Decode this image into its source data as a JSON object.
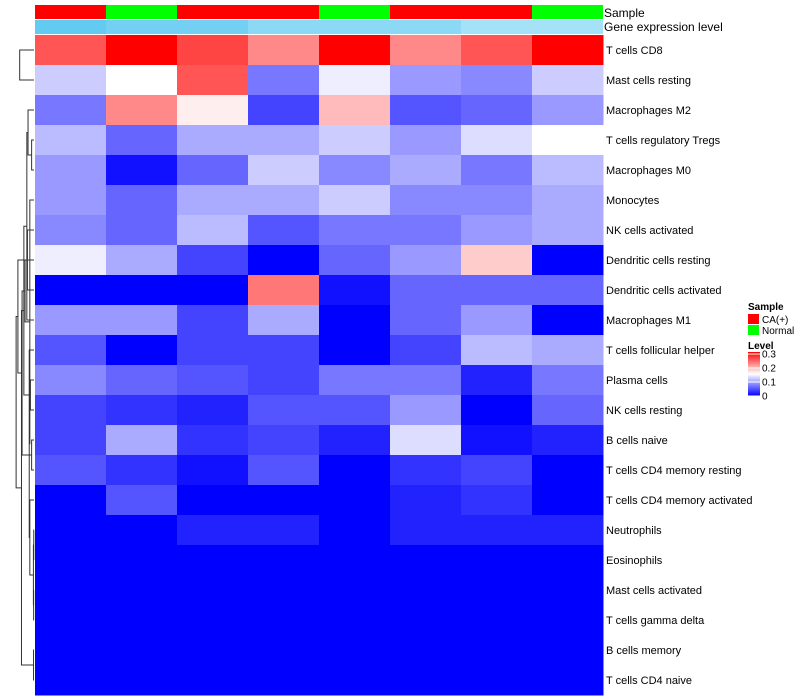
{
  "chart_data": {
    "type": "heatmap",
    "title": "",
    "annotation_labels": {
      "sample": "Sample",
      "gene_expression": "Gene expression level"
    },
    "sample_groups": [
      "CA(+)",
      "Normal",
      "CA(+)",
      "CA(+)",
      "Normal",
      "CA(+)",
      "CA(+)",
      "Normal"
    ],
    "gene_expression_levels": [
      0.95,
      0.85,
      0.85,
      0.7,
      0.7,
      0.7,
      0.55,
      0.55
    ],
    "rows": [
      "T cells CD8",
      "Mast cells resting",
      "Macrophages M2",
      "T cells regulatory  Tregs",
      "Macrophages M0",
      "Monocytes",
      "NK cells activated",
      "Dendritic cells resting",
      "Dendritic cells activated",
      "Macrophages M1",
      "T cells follicular helper",
      "Plasma cells",
      "NK cells resting",
      "B cells naive",
      "T cells CD4 memory resting",
      "T cells CD4 memory activated",
      "Neutrophils",
      "Eosinophils",
      "Mast cells activated",
      "T cells gamma delta",
      "B cells memory",
      "T cells CD4 naive"
    ],
    "values": [
      [
        0.25,
        0.3,
        0.26,
        0.22,
        0.3,
        0.22,
        0.25,
        0.3
      ],
      [
        0.12,
        0.15,
        0.25,
        0.07,
        0.14,
        0.09,
        0.08,
        0.12
      ],
      [
        0.07,
        0.22,
        0.16,
        0.04,
        0.19,
        0.05,
        0.06,
        0.09
      ],
      [
        0.11,
        0.06,
        0.1,
        0.1,
        0.12,
        0.09,
        0.13,
        0.15
      ],
      [
        0.09,
        0.01,
        0.06,
        0.12,
        0.08,
        0.1,
        0.07,
        0.11
      ],
      [
        0.09,
        0.06,
        0.1,
        0.1,
        0.12,
        0.08,
        0.08,
        0.1
      ],
      [
        0.08,
        0.06,
        0.11,
        0.05,
        0.07,
        0.07,
        0.09,
        0.1
      ],
      [
        0.14,
        0.1,
        0.04,
        0.0,
        0.06,
        0.09,
        0.18,
        0.0
      ],
      [
        0.0,
        0.0,
        0.0,
        0.23,
        0.01,
        0.06,
        0.06,
        0.06
      ],
      [
        0.09,
        0.09,
        0.04,
        0.1,
        0.0,
        0.06,
        0.09,
        0.0
      ],
      [
        0.05,
        0.0,
        0.04,
        0.04,
        0.0,
        0.04,
        0.11,
        0.1
      ],
      [
        0.08,
        0.06,
        0.05,
        0.04,
        0.07,
        0.07,
        0.02,
        0.07
      ],
      [
        0.04,
        0.03,
        0.02,
        0.05,
        0.05,
        0.09,
        0.0,
        0.06
      ],
      [
        0.04,
        0.1,
        0.03,
        0.04,
        0.02,
        0.13,
        0.01,
        0.02
      ],
      [
        0.05,
        0.03,
        0.01,
        0.05,
        0.0,
        0.03,
        0.04,
        0.0
      ],
      [
        0.0,
        0.05,
        0.0,
        0.0,
        0.0,
        0.02,
        0.03,
        0.0
      ],
      [
        0.0,
        0.0,
        0.02,
        0.02,
        0.0,
        0.02,
        0.02,
        0.02
      ],
      [
        0.0,
        0.0,
        0.0,
        0.0,
        0.0,
        0.0,
        0.0,
        0.0
      ],
      [
        0.0,
        0.0,
        0.0,
        0.0,
        0.0,
        0.0,
        0.0,
        0.0
      ],
      [
        0.0,
        0.0,
        0.0,
        0.0,
        0.0,
        0.0,
        0.0,
        0.0
      ],
      [
        0.0,
        0.0,
        0.0,
        0.0,
        0.0,
        0.0,
        0.0,
        0.0
      ],
      [
        0.0,
        0.0,
        0.0,
        0.0,
        0.0,
        0.0,
        0.0,
        0.0
      ]
    ],
    "color_scale": {
      "low": "#0000FF",
      "mid": "#FFFFFF",
      "high": "#FF0000",
      "min": 0,
      "mid_value": 0.15,
      "max": 0.3
    },
    "row_dendrogram": {
      "merges": [
        [
          17,
          18,
          0.02
        ],
        [
          19,
          20,
          0.03
        ],
        [
          21,
          22,
          0.04
        ],
        [
          23,
          24,
          0.05
        ],
        [
          14,
          15,
          0.2
        ],
        [
          16,
          26,
          0.35
        ],
        [
          12,
          13,
          0.3
        ],
        [
          11,
          28,
          0.4
        ],
        [
          4,
          5,
          0.2
        ],
        [
          6,
          30,
          0.35
        ],
        [
          3,
          31,
          0.5
        ],
        [
          7,
          9,
          0.55
        ],
        [
          10,
          33,
          0.6
        ],
        [
          32,
          34,
          0.75
        ],
        [
          29,
          35,
          0.85
        ],
        [
          27,
          36,
          1.0
        ],
        [
          25,
          37,
          1.05
        ],
        [
          8,
          38,
          1.35
        ],
        [
          1,
          2,
          1.2
        ],
        [
          40,
          39,
          1.5
        ],
        [
          0,
          41,
          2.6
        ]
      ],
      "max_height": 2.6
    },
    "legend": {
      "sample_title": "Sample",
      "sample_items": [
        {
          "label": "CA(+)",
          "color": "#FF0000"
        },
        {
          "label": "Normal",
          "color": "#00FF00"
        }
      ],
      "level_title": "Level",
      "level_ticks": [
        {
          "value": 0.3,
          "label": "0.3"
        },
        {
          "value": 0.2,
          "label": "0.2"
        },
        {
          "value": 0.1,
          "label": "0.1"
        },
        {
          "value": 0.0,
          "label": "0"
        }
      ]
    },
    "annotation_colors": {
      "CA(+)": "#FF0000",
      "Normal": "#00FF00",
      "expression_low": "#FFFFFF",
      "expression_high": "#5BC8F0"
    }
  }
}
